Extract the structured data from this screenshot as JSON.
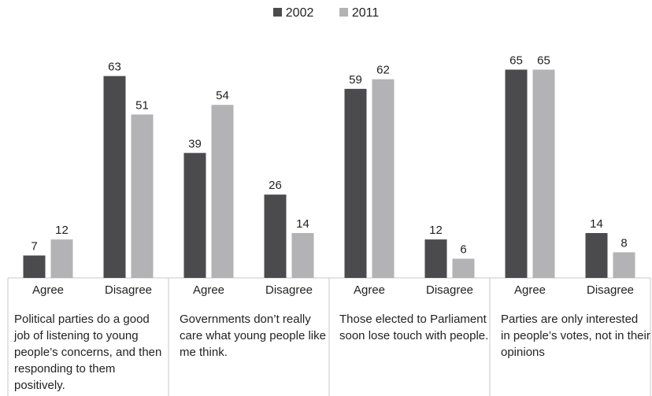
{
  "colors": {
    "series_2002": "#4b4b4d",
    "series_2011": "#b3b3b5",
    "axis": "#c8c8c8"
  },
  "legend": [
    {
      "label": "2002"
    },
    {
      "label": "2011"
    }
  ],
  "groups": [
    {
      "text": "Political parties do a good job of listening to young people’s concerns, and then responding to them positively."
    },
    {
      "text": "Governments don’t really care what young people like me think."
    },
    {
      "text": "Those elected to Parliament soon lose touch with people."
    },
    {
      "text": "Parties are only interested in people’s votes, not in their opinions"
    }
  ],
  "chart_data": {
    "type": "bar",
    "categories": [
      "Agree",
      "Disagree",
      "Agree",
      "Disagree",
      "Agree",
      "Disagree",
      "Agree",
      "Disagree"
    ],
    "series": [
      {
        "name": "2002",
        "values": [
          7,
          63,
          39,
          26,
          59,
          12,
          65,
          14
        ]
      },
      {
        "name": "2011",
        "values": [
          12,
          51,
          54,
          14,
          62,
          6,
          65,
          8
        ]
      }
    ],
    "ylim": [
      0,
      70
    ],
    "grid": false,
    "legend_position": "top-center",
    "data_labels": true
  }
}
